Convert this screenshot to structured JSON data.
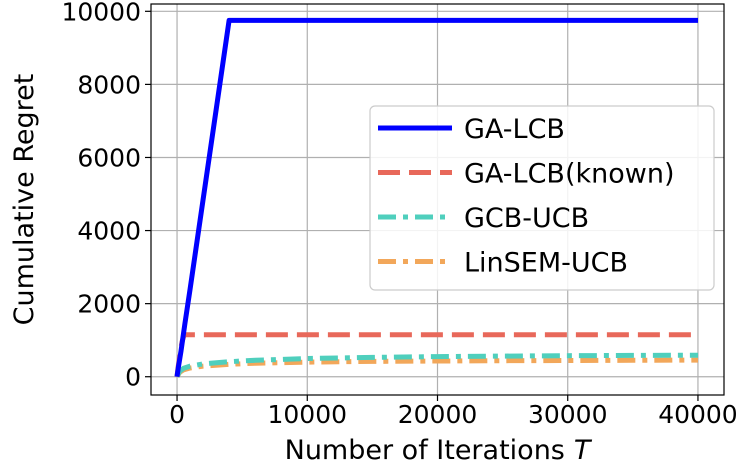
{
  "chart_data": {
    "type": "line",
    "xlabel": "Number of Iterations",
    "xlabel_var": "T",
    "ylabel": "Cumulative Regret",
    "xlim": [
      -2000,
      42000
    ],
    "ylim": [
      -500,
      10200
    ],
    "xticks": [
      0,
      10000,
      20000,
      30000,
      40000
    ],
    "yticks": [
      0,
      2000,
      4000,
      6000,
      8000,
      10000
    ],
    "grid": true,
    "legend_position": "center-right",
    "series": [
      {
        "name": "GA-LCB",
        "color": "#0000ff",
        "style": "solid",
        "x": [
          0,
          100,
          300,
          600,
          1000,
          2000,
          3000,
          4000,
          10000,
          20000,
          30000,
          40000
        ],
        "y": [
          0,
          250,
          700,
          1450,
          2400,
          4850,
          7300,
          9750,
          9750,
          9750,
          9750,
          9750
        ]
      },
      {
        "name": "GA-LCB(known)",
        "color": "#e8685a",
        "style": "dashed",
        "x": [
          0,
          100,
          200,
          300,
          400,
          500,
          600,
          1000,
          10000,
          20000,
          30000,
          40000
        ],
        "y": [
          0,
          300,
          560,
          800,
          980,
          1100,
          1150,
          1150,
          1150,
          1150,
          1150,
          1150
        ]
      },
      {
        "name": "GCB-UCB",
        "color": "#4fcfbd",
        "style": "dashdot",
        "x": [
          0,
          200,
          500,
          1000,
          2000,
          4000,
          6000,
          10000,
          15000,
          20000,
          25000,
          30000,
          35000,
          40000
        ],
        "y": [
          0,
          150,
          230,
          290,
          350,
          410,
          450,
          500,
          530,
          550,
          565,
          575,
          585,
          590
        ]
      },
      {
        "name": "LinSEM-UCB",
        "color": "#f2a75a",
        "style": "dashdot",
        "x": [
          0,
          200,
          500,
          1000,
          2000,
          4000,
          6000,
          10000,
          15000,
          20000,
          25000,
          30000,
          35000,
          40000
        ],
        "y": [
          0,
          120,
          190,
          240,
          290,
          340,
          370,
          400,
          420,
          430,
          438,
          445,
          450,
          455
        ]
      }
    ]
  }
}
